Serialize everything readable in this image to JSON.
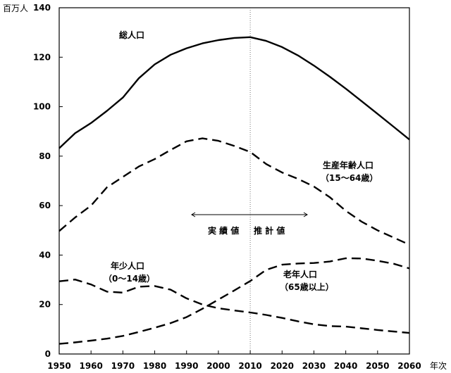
{
  "chart_data": {
    "type": "line",
    "y_unit": "百万人",
    "x_unit": "年次",
    "xlim": [
      1950,
      2060
    ],
    "ylim": [
      0,
      140
    ],
    "x_ticks": [
      1950,
      1960,
      1970,
      1980,
      1990,
      2000,
      2010,
      2020,
      2030,
      2040,
      2050,
      2060
    ],
    "y_ticks": [
      0,
      20,
      40,
      60,
      80,
      100,
      120,
      140
    ],
    "divider_x": 2010,
    "range_labels": {
      "actual": "実 績 値",
      "projected": "推 計 値"
    },
    "grid": false,
    "series": [
      {
        "name": "総人口",
        "style": "solid",
        "x": [
          1950,
          1955,
          1960,
          1965,
          1970,
          1975,
          1980,
          1985,
          1990,
          1995,
          2000,
          2005,
          2010,
          2015,
          2020,
          2025,
          2030,
          2035,
          2040,
          2045,
          2050,
          2055,
          2060
        ],
        "values": [
          83.2,
          89.3,
          93.4,
          98.3,
          103.7,
          111.5,
          117.1,
          121.0,
          123.6,
          125.6,
          126.9,
          127.8,
          128.1,
          126.6,
          124.1,
          120.7,
          116.6,
          112.1,
          107.3,
          102.2,
          97.1,
          91.9,
          86.7
        ]
      },
      {
        "name": "生産年齢人口",
        "label_lines": [
          "生産年齢人口",
          "（15～64歳）"
        ],
        "style": "dashed",
        "x": [
          1950,
          1955,
          1960,
          1965,
          1970,
          1975,
          1980,
          1985,
          1990,
          1995,
          2000,
          2005,
          2010,
          2015,
          2020,
          2025,
          2030,
          2035,
          2040,
          2045,
          2050,
          2055,
          2060
        ],
        "values": [
          49.7,
          55.2,
          60.0,
          67.4,
          71.6,
          75.8,
          78.8,
          82.5,
          86.0,
          87.2,
          86.2,
          84.1,
          81.7,
          76.8,
          73.4,
          70.8,
          67.7,
          63.4,
          57.9,
          53.5,
          50.0,
          47.1,
          44.2
        ]
      },
      {
        "name": "年少人口",
        "label_lines": [
          "年少人口",
          "（0～14歳）"
        ],
        "style": "dashed",
        "x": [
          1950,
          1955,
          1960,
          1965,
          1970,
          1975,
          1980,
          1985,
          1990,
          1995,
          2000,
          2005,
          2010,
          2015,
          2020,
          2025,
          2030,
          2035,
          2040,
          2045,
          2050,
          2055,
          2060
        ],
        "values": [
          29.4,
          30.1,
          28.1,
          25.2,
          24.8,
          27.2,
          27.5,
          26.0,
          22.5,
          20.0,
          18.5,
          17.6,
          16.8,
          15.8,
          14.6,
          13.2,
          12.0,
          11.3,
          11.1,
          10.4,
          9.7,
          9.1,
          8.5
        ]
      },
      {
        "name": "老年人口",
        "label_lines": [
          "老年人口",
          "（65歳以上）"
        ],
        "style": "dashed",
        "x": [
          1950,
          1955,
          1960,
          1965,
          1970,
          1975,
          1980,
          1985,
          1990,
          1995,
          2000,
          2005,
          2010,
          2015,
          2020,
          2025,
          2030,
          2035,
          2040,
          2045,
          2050,
          2055,
          2060
        ],
        "values": [
          4.1,
          4.7,
          5.4,
          6.2,
          7.3,
          8.9,
          10.6,
          12.5,
          14.9,
          18.3,
          22.0,
          25.7,
          29.5,
          34.0,
          36.1,
          36.6,
          36.8,
          37.4,
          38.7,
          38.6,
          37.7,
          36.5,
          34.6
        ]
      }
    ]
  }
}
